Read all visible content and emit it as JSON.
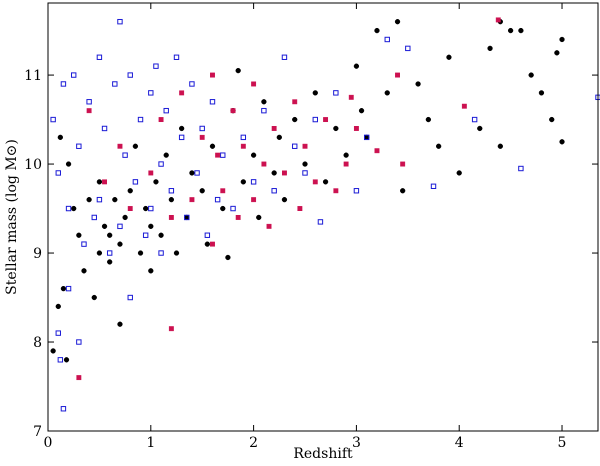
{
  "chart_data": {
    "type": "scatter",
    "x_label": "Redshift",
    "y_label": "Stellar mass (log M⊙)",
    "xlim": [
      0,
      5.35
    ],
    "ylim": [
      7,
      11.81
    ],
    "xticks": [
      0,
      1,
      2,
      3,
      4,
      5
    ],
    "yticks": [
      7,
      8,
      9,
      10,
      11
    ],
    "series": [
      {
        "marker": "circle",
        "filled": true,
        "color": "#000000",
        "x": [
          0.05,
          0.1,
          0.15,
          0.18,
          0.12,
          0.2,
          0.25,
          0.3,
          0.35,
          0.4,
          0.45,
          0.5,
          0.5,
          0.55,
          0.6,
          0.6,
          0.65,
          0.7,
          0.7,
          0.75,
          0.8,
          0.85,
          0.9,
          0.95,
          1.0,
          1.0,
          1.05,
          1.1,
          1.15,
          1.2,
          1.25,
          1.3,
          1.35,
          1.4,
          1.5,
          1.55,
          1.6,
          1.7,
          1.75,
          1.8,
          1.85,
          1.9,
          2.0,
          2.05,
          2.1,
          2.2,
          2.25,
          2.3,
          2.4,
          2.5,
          2.6,
          2.7,
          2.8,
          2.9,
          3.0,
          3.05,
          3.1,
          3.2,
          3.3,
          3.4,
          3.45,
          3.6,
          3.7,
          3.8,
          3.9,
          4.0,
          4.2,
          4.3,
          4.4,
          4.5,
          4.6,
          4.7,
          4.8,
          4.9,
          5.0,
          5.0,
          4.95,
          4.4
        ],
        "values": [
          7.9,
          8.4,
          8.6,
          7.8,
          10.3,
          10.0,
          9.5,
          9.2,
          8.8,
          9.6,
          8.5,
          9.0,
          9.8,
          9.3,
          8.9,
          9.2,
          9.6,
          9.1,
          8.2,
          9.4,
          9.7,
          10.2,
          9.0,
          9.5,
          9.3,
          8.8,
          9.8,
          9.2,
          10.1,
          9.6,
          9.0,
          10.4,
          9.4,
          9.9,
          9.7,
          9.1,
          10.2,
          9.5,
          8.95,
          10.6,
          11.05,
          9.8,
          10.1,
          9.4,
          10.7,
          9.9,
          10.3,
          9.6,
          10.5,
          10.0,
          10.8,
          9.8,
          10.4,
          10.1,
          11.1,
          10.6,
          10.3,
          11.5,
          10.8,
          11.6,
          9.7,
          10.9,
          10.5,
          10.2,
          11.2,
          9.9,
          10.4,
          11.3,
          10.2,
          11.5,
          11.5,
          11.0,
          10.8,
          10.5,
          11.4,
          10.25,
          11.25,
          11.6
        ]
      },
      {
        "marker": "square",
        "filled": false,
        "color": "#1a1ad6",
        "x": [
          0.05,
          0.1,
          0.15,
          0.15,
          0.2,
          0.2,
          0.25,
          0.3,
          0.3,
          0.35,
          0.4,
          0.45,
          0.5,
          0.5,
          0.55,
          0.6,
          0.65,
          0.7,
          0.7,
          0.75,
          0.8,
          0.8,
          0.85,
          0.9,
          0.95,
          1.0,
          1.0,
          1.05,
          1.1,
          1.1,
          1.15,
          1.2,
          1.25,
          1.3,
          1.35,
          1.4,
          1.45,
          1.5,
          1.55,
          1.6,
          1.65,
          1.7,
          1.8,
          1.9,
          2.0,
          2.1,
          2.2,
          2.3,
          2.4,
          2.5,
          2.6,
          2.65,
          2.8,
          3.0,
          3.1,
          3.3,
          3.5,
          3.75,
          4.15,
          4.6,
          5.35,
          0.1,
          0.12
        ],
        "values": [
          10.5,
          9.9,
          10.9,
          7.25,
          9.5,
          8.6,
          11.0,
          10.2,
          8.0,
          9.1,
          10.7,
          9.4,
          11.2,
          9.6,
          10.4,
          9.0,
          10.9,
          9.3,
          11.6,
          10.1,
          8.5,
          11.0,
          9.8,
          10.5,
          9.2,
          10.8,
          9.5,
          11.1,
          10.0,
          9.0,
          10.6,
          9.7,
          11.2,
          10.3,
          9.4,
          10.9,
          9.9,
          10.4,
          9.2,
          10.7,
          9.6,
          10.1,
          9.5,
          10.3,
          9.8,
          10.6,
          9.7,
          11.2,
          10.2,
          9.9,
          10.5,
          9.35,
          10.8,
          9.7,
          10.3,
          11.4,
          11.3,
          9.75,
          10.5,
          9.95,
          10.75,
          8.1,
          7.8
        ]
      },
      {
        "marker": "square",
        "filled": true,
        "color": "#cc1150",
        "x": [
          0.3,
          0.4,
          0.55,
          0.7,
          0.8,
          1.0,
          1.1,
          1.2,
          1.2,
          1.3,
          1.4,
          1.5,
          1.6,
          1.6,
          1.65,
          1.7,
          1.8,
          1.85,
          1.9,
          2.0,
          2.0,
          2.1,
          2.15,
          2.2,
          2.3,
          2.4,
          2.45,
          2.5,
          2.6,
          2.7,
          2.8,
          2.9,
          2.95,
          3.0,
          3.2,
          3.4,
          3.45,
          4.05,
          4.38
        ],
        "values": [
          7.6,
          10.6,
          9.8,
          10.2,
          9.5,
          9.9,
          10.5,
          8.15,
          9.4,
          10.8,
          9.6,
          10.3,
          11.0,
          9.1,
          10.1,
          9.7,
          10.6,
          9.4,
          10.2,
          10.9,
          9.6,
          10.0,
          9.3,
          10.4,
          9.9,
          10.7,
          9.5,
          10.2,
          9.8,
          10.5,
          9.7,
          10.0,
          10.75,
          10.4,
          10.15,
          11.0,
          10.0,
          10.65,
          11.62
        ]
      }
    ]
  }
}
